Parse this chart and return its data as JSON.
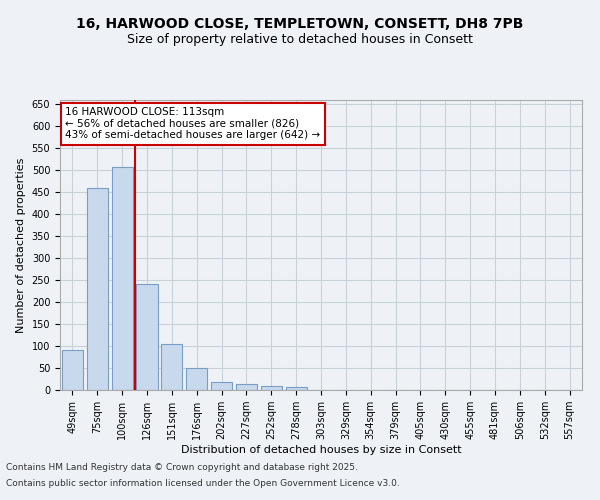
{
  "title_line1": "16, HARWOOD CLOSE, TEMPLETOWN, CONSETT, DH8 7PB",
  "title_line2": "Size of property relative to detached houses in Consett",
  "xlabel": "Distribution of detached houses by size in Consett",
  "ylabel": "Number of detached properties",
  "categories": [
    "49sqm",
    "75sqm",
    "100sqm",
    "126sqm",
    "151sqm",
    "176sqm",
    "202sqm",
    "227sqm",
    "252sqm",
    "278sqm",
    "303sqm",
    "329sqm",
    "354sqm",
    "379sqm",
    "405sqm",
    "430sqm",
    "455sqm",
    "481sqm",
    "506sqm",
    "532sqm",
    "557sqm"
  ],
  "values": [
    90,
    460,
    507,
    242,
    104,
    49,
    18,
    14,
    10,
    6,
    1,
    0,
    0,
    0,
    0,
    0,
    0,
    1,
    0,
    0,
    1
  ],
  "bar_color": "#c9d9ed",
  "bar_edge_color": "#7a9dc5",
  "bar_edge_width": 0.8,
  "grid_color": "#c8d0d8",
  "background_color": "#eef2f7",
  "vline_color": "#cc0000",
  "vline_x": 2.5,
  "annotation_text": "16 HARWOOD CLOSE: 113sqm\n← 56% of detached houses are smaller (826)\n43% of semi-detached houses are larger (642) →",
  "annotation_box_color": "#ffffff",
  "annotation_box_edge": "#cc0000",
  "ylim": [
    0,
    660
  ],
  "yticks": [
    0,
    50,
    100,
    150,
    200,
    250,
    300,
    350,
    400,
    450,
    500,
    550,
    600,
    650
  ],
  "footer_line1": "Contains HM Land Registry data © Crown copyright and database right 2025.",
  "footer_line2": "Contains public sector information licensed under the Open Government Licence v3.0.",
  "title_fontsize": 10,
  "subtitle_fontsize": 9,
  "axis_label_fontsize": 8,
  "tick_fontsize": 7,
  "annotation_fontsize": 7.5,
  "footer_fontsize": 6.5
}
